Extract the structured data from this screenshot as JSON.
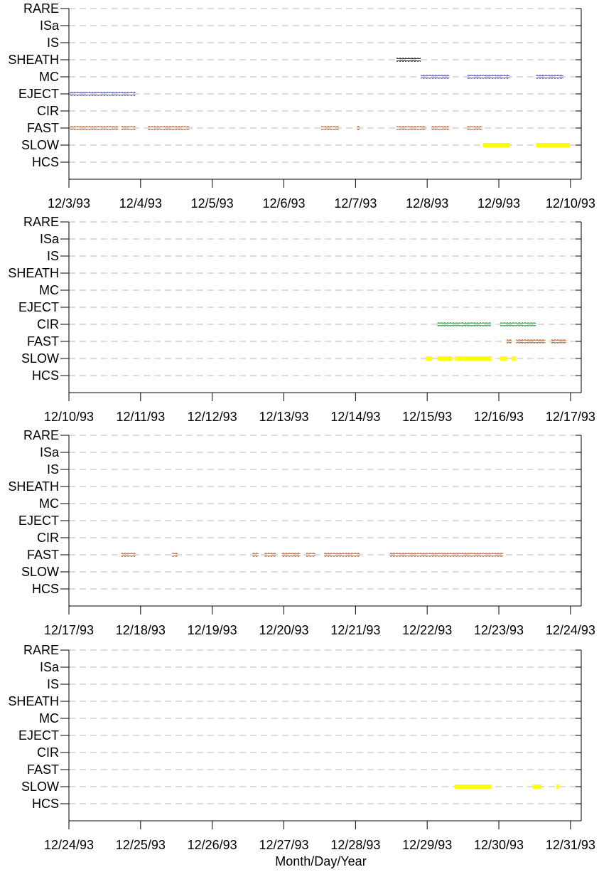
{
  "chart_data": [
    {
      "type": "timeline",
      "categories": [
        "RARE",
        "ISa",
        "IS",
        "SHEATH",
        "MC",
        "EJECT",
        "CIR",
        "FAST",
        "SLOW",
        "HCS"
      ],
      "xlim": [
        3,
        10.15
      ],
      "xticks": [
        {
          "value": 3,
          "label": "12/3/93"
        },
        {
          "value": 4,
          "label": "12/4/93"
        },
        {
          "value": 5,
          "label": "12/5/93"
        },
        {
          "value": 6,
          "label": "12/6/93"
        },
        {
          "value": 7,
          "label": "12/7/93"
        },
        {
          "value": 8,
          "label": "12/8/93"
        },
        {
          "value": 9,
          "label": "12/9/93"
        },
        {
          "value": 10,
          "label": "12/10/93"
        }
      ],
      "grid": true,
      "series": [
        {
          "name": "SHEATH",
          "color": "#000000",
          "marker": "open-square",
          "intervals": [
            [
              7.57,
              7.91
            ]
          ]
        },
        {
          "name": "MC",
          "color": "#4a4ab0",
          "marker": "open-square",
          "intervals": [
            [
              7.91,
              8.31
            ],
            [
              8.56,
              9.15
            ],
            [
              9.52,
              9.9
            ]
          ]
        },
        {
          "name": "EJECT",
          "color": "#4a4ab0",
          "marker": "open-square",
          "intervals": [
            [
              3.0,
              3.93
            ]
          ]
        },
        {
          "name": "FAST",
          "color": "#b85c2a",
          "marker": "open-square",
          "intervals": [
            [
              3.0,
              3.69
            ],
            [
              3.73,
              3.93
            ],
            [
              4.1,
              4.68
            ],
            [
              6.52,
              6.77
            ],
            [
              7.02,
              7.06
            ],
            [
              7.57,
              7.98
            ],
            [
              8.06,
              8.31
            ],
            [
              8.56,
              8.77
            ]
          ]
        },
        {
          "name": "SLOW",
          "color": "#ffff00",
          "marker": "bar",
          "intervals": [
            [
              8.78,
              9.15
            ],
            [
              9.52,
              9.99
            ]
          ]
        }
      ]
    },
    {
      "type": "timeline",
      "categories": [
        "RARE",
        "ISa",
        "IS",
        "SHEATH",
        "MC",
        "EJECT",
        "CIR",
        "FAST",
        "SLOW",
        "HCS"
      ],
      "xlim": [
        10,
        17.15
      ],
      "xticks": [
        {
          "value": 10,
          "label": "12/10/93"
        },
        {
          "value": 11,
          "label": "12/11/93"
        },
        {
          "value": 12,
          "label": "12/12/93"
        },
        {
          "value": 13,
          "label": "12/13/93"
        },
        {
          "value": 14,
          "label": "12/14/93"
        },
        {
          "value": 15,
          "label": "12/15/93"
        },
        {
          "value": 16,
          "label": "12/16/93"
        },
        {
          "value": 17,
          "label": "12/17/93"
        }
      ],
      "grid": true,
      "series": [
        {
          "name": "CIR",
          "color": "#1a9a3a",
          "marker": "open-square",
          "intervals": [
            [
              15.14,
              15.89
            ],
            [
              16.02,
              16.52
            ]
          ]
        },
        {
          "name": "FAST",
          "color": "#b85c2a",
          "marker": "open-square",
          "intervals": [
            [
              16.11,
              16.18
            ],
            [
              16.24,
              16.65
            ],
            [
              16.73,
              16.94
            ]
          ]
        },
        {
          "name": "SLOW",
          "color": "#ffff00",
          "marker": "bar",
          "intervals": [
            [
              14.98,
              15.07
            ],
            [
              15.14,
              15.35
            ],
            [
              15.39,
              15.89
            ],
            [
              16.02,
              16.11
            ],
            [
              16.18,
              16.24
            ]
          ]
        }
      ]
    },
    {
      "type": "timeline",
      "categories": [
        "RARE",
        "ISa",
        "IS",
        "SHEATH",
        "MC",
        "EJECT",
        "CIR",
        "FAST",
        "SLOW",
        "HCS"
      ],
      "xlim": [
        17,
        24.15
      ],
      "xticks": [
        {
          "value": 17,
          "label": "12/17/93"
        },
        {
          "value": 18,
          "label": "12/18/93"
        },
        {
          "value": 19,
          "label": "12/19/93"
        },
        {
          "value": 20,
          "label": "12/20/93"
        },
        {
          "value": 21,
          "label": "12/21/93"
        },
        {
          "value": 22,
          "label": "12/22/93"
        },
        {
          "value": 23,
          "label": "12/23/93"
        },
        {
          "value": 24,
          "label": "12/24/93"
        }
      ],
      "grid": true,
      "series": [
        {
          "name": "FAST",
          "color": "#b85c2a",
          "marker": "open-square",
          "intervals": [
            [
              17.73,
              17.93
            ],
            [
              18.44,
              18.52
            ],
            [
              19.56,
              19.65
            ],
            [
              19.73,
              19.89
            ],
            [
              19.97,
              20.23
            ],
            [
              20.31,
              20.44
            ],
            [
              20.56,
              21.06
            ],
            [
              21.48,
              23.06
            ]
          ]
        }
      ]
    },
    {
      "type": "timeline",
      "categories": [
        "RARE",
        "ISa",
        "IS",
        "SHEATH",
        "MC",
        "EJECT",
        "CIR",
        "FAST",
        "SLOW",
        "HCS"
      ],
      "xlim": [
        24,
        31.15
      ],
      "xticks": [
        {
          "value": 24,
          "label": "12/24/93"
        },
        {
          "value": 25,
          "label": "12/25/93"
        },
        {
          "value": 26,
          "label": "12/26/93"
        },
        {
          "value": 27,
          "label": "12/27/93"
        },
        {
          "value": 28,
          "label": "12/28/93"
        },
        {
          "value": 29,
          "label": "12/29/93"
        },
        {
          "value": 30,
          "label": "12/30/93"
        },
        {
          "value": 31,
          "label": "12/31/93"
        }
      ],
      "grid": true,
      "xlabel": "Month/Day/Year",
      "series": [
        {
          "name": "SLOW",
          "color": "#ffff00",
          "marker": "bar",
          "intervals": [
            [
              29.38,
              29.89
            ],
            [
              30.47,
              30.59
            ],
            [
              30.8,
              30.84
            ]
          ]
        }
      ]
    }
  ]
}
